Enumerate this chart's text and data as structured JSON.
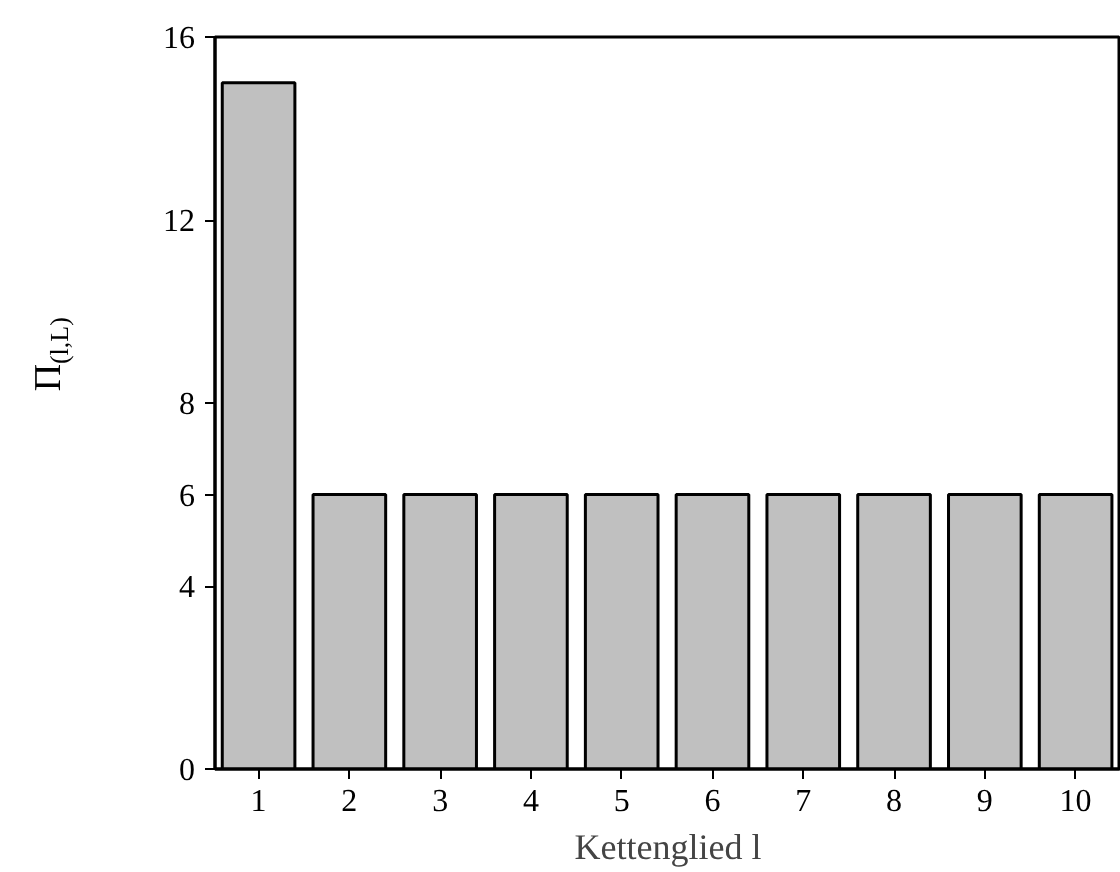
{
  "chart_data": {
    "type": "bar",
    "xlabel": "Kettenglied l",
    "ylabel": "Π$_{(l,L)}$",
    "categories": [
      "1",
      "2",
      "3",
      "4",
      "5",
      "6",
      "7",
      "8",
      "9",
      "10"
    ],
    "values": [
      15,
      6,
      6,
      6,
      6,
      6,
      6,
      6,
      6,
      6
    ],
    "color": "#c0c0c0",
    "ylim": [
      0,
      16
    ],
    "yticks": [
      0,
      4,
      6,
      8,
      12,
      16
    ],
    "grid": false
  }
}
